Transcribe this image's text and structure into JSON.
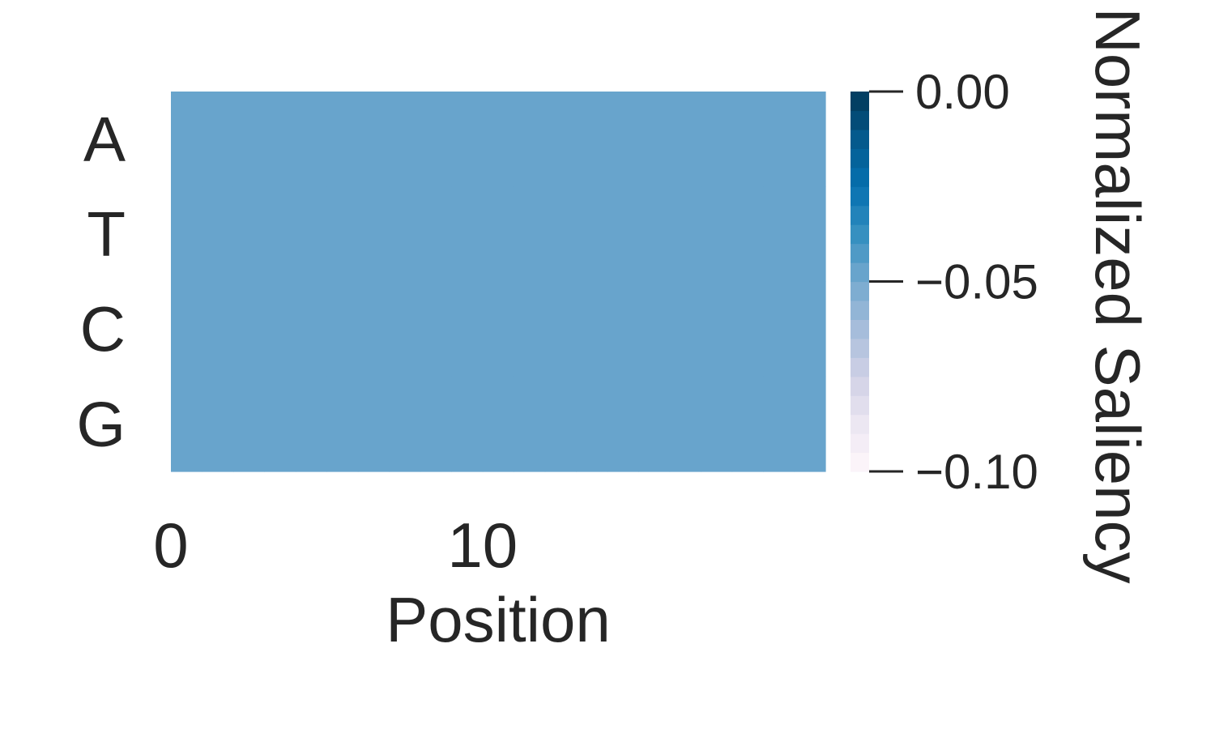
{
  "chart_data": {
    "type": "heatmap",
    "title": "",
    "xlabel": "Position",
    "ylabel": "",
    "rows": [
      "A",
      "T",
      "C",
      "G"
    ],
    "n_positions": 21,
    "x_ticks": [
      0,
      10
    ],
    "values": [
      [
        -0.05,
        -0.05,
        -0.05,
        -0.05,
        -0.05,
        -0.05,
        -0.05,
        -0.05,
        -0.05,
        -0.05,
        -0.05,
        -0.05,
        -0.05,
        -0.05,
        -0.05,
        -0.05,
        -0.05,
        -0.05,
        -0.05,
        -0.05,
        -0.05
      ],
      [
        -0.05,
        -0.05,
        -0.05,
        -0.05,
        -0.05,
        -0.05,
        -0.05,
        -0.05,
        -0.05,
        -0.05,
        -0.05,
        -0.05,
        -0.05,
        -0.05,
        -0.05,
        -0.05,
        -0.05,
        -0.05,
        -0.05,
        -0.05,
        -0.05
      ],
      [
        -0.05,
        -0.05,
        -0.05,
        -0.05,
        -0.05,
        -0.05,
        -0.05,
        -0.05,
        -0.05,
        -0.05,
        -0.05,
        -0.05,
        -0.05,
        -0.05,
        -0.05,
        -0.05,
        -0.05,
        -0.05,
        -0.05,
        -0.05,
        -0.05
      ],
      [
        -0.05,
        -0.05,
        -0.05,
        -0.05,
        -0.05,
        -0.05,
        -0.05,
        -0.05,
        -0.05,
        -0.05,
        -0.05,
        -0.05,
        -0.05,
        -0.05,
        -0.05,
        -0.05,
        -0.05,
        -0.05,
        -0.05,
        -0.05,
        -0.05
      ]
    ],
    "colorbar": {
      "label": "Normalized Saliency",
      "vmin": -0.1,
      "vmax": 0.0,
      "ticks": [
        {
          "value": 0.0,
          "label": "0.00"
        },
        {
          "value": -0.05,
          "label": "−0.05"
        },
        {
          "value": -0.1,
          "label": "−0.10"
        }
      ],
      "colormap": [
        "#fff7fb",
        "#ece7f2",
        "#d0d1e6",
        "#a6bddb",
        "#74a9cf",
        "#3690c0",
        "#0570b0",
        "#045a8d",
        "#023858"
      ],
      "levels": 20
    }
  }
}
